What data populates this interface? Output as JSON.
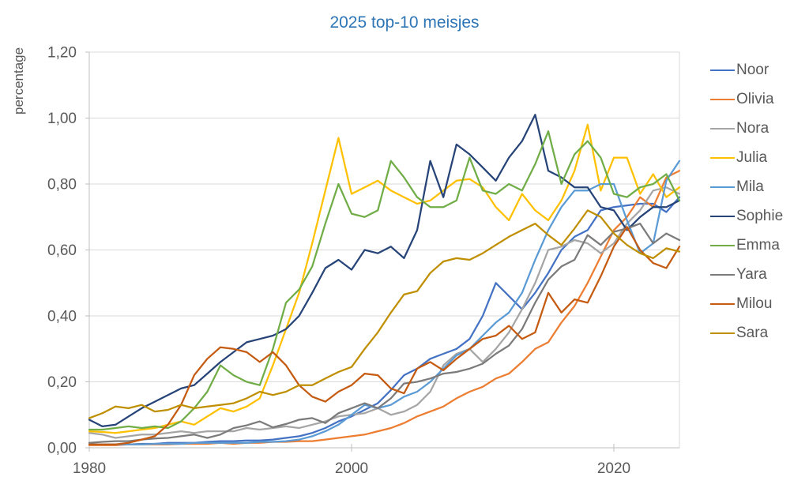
{
  "title": "2025 top-10 meisjes",
  "colors": {
    "title_text": "#2E75B6",
    "axis_text": "#595959",
    "gridline": "#D9D9D9",
    "axis_line": "#BFBFBF",
    "background": "#FFFFFF"
  },
  "y_axis": {
    "title": "percentage",
    "tick_values": [
      0,
      0.2,
      0.4,
      0.6,
      0.8,
      1.0,
      1.2
    ],
    "tick_labels": [
      "0,00",
      "0,20",
      "0,40",
      "0,60",
      "0,80",
      "1,00",
      "1,20"
    ]
  },
  "x_axis": {
    "tick_values": [
      1980,
      2000,
      2020
    ],
    "tick_labels": [
      "1980",
      "2000",
      "2020"
    ]
  },
  "chart_data": {
    "type": "line",
    "title": "2025 top-10 meisjes",
    "xlabel": "",
    "ylabel": "percentage",
    "xlim": [
      1980,
      2025
    ],
    "ylim": [
      0,
      1.2
    ],
    "grid": "horizontal",
    "legend_position": "right",
    "x": [
      1980,
      1981,
      1982,
      1983,
      1984,
      1985,
      1986,
      1987,
      1988,
      1989,
      1990,
      1991,
      1992,
      1993,
      1994,
      1995,
      1996,
      1997,
      1998,
      1999,
      2000,
      2001,
      2002,
      2003,
      2004,
      2005,
      2006,
      2007,
      2008,
      2009,
      2010,
      2011,
      2012,
      2013,
      2014,
      2015,
      2016,
      2017,
      2018,
      2019,
      2020,
      2021,
      2022,
      2023,
      2024,
      2025
    ],
    "series": [
      {
        "name": "Noor",
        "color": "#4472C4",
        "values": [
          0.01,
          0.01,
          0.01,
          0.01,
          0.012,
          0.012,
          0.015,
          0.015,
          0.015,
          0.018,
          0.02,
          0.02,
          0.022,
          0.022,
          0.025,
          0.03,
          0.035,
          0.045,
          0.06,
          0.08,
          0.095,
          0.115,
          0.135,
          0.175,
          0.22,
          0.24,
          0.27,
          0.285,
          0.3,
          0.33,
          0.4,
          0.5,
          0.46,
          0.42,
          0.47,
          0.53,
          0.6,
          0.64,
          0.66,
          0.72,
          0.73,
          0.735,
          0.74,
          0.74,
          0.715,
          0.76
        ]
      },
      {
        "name": "Olivia",
        "color": "#ED7D31",
        "values": [
          0.008,
          0.008,
          0.008,
          0.01,
          0.01,
          0.01,
          0.01,
          0.012,
          0.012,
          0.012,
          0.015,
          0.012,
          0.015,
          0.015,
          0.018,
          0.018,
          0.02,
          0.02,
          0.025,
          0.03,
          0.035,
          0.04,
          0.05,
          0.06,
          0.075,
          0.095,
          0.11,
          0.125,
          0.15,
          0.17,
          0.185,
          0.21,
          0.225,
          0.26,
          0.3,
          0.32,
          0.38,
          0.43,
          0.5,
          0.58,
          0.66,
          0.7,
          0.76,
          0.73,
          0.82,
          0.84
        ]
      },
      {
        "name": "Nora",
        "color": "#A5A5A5",
        "values": [
          0.045,
          0.04,
          0.03,
          0.035,
          0.04,
          0.04,
          0.045,
          0.05,
          0.045,
          0.05,
          0.05,
          0.05,
          0.06,
          0.055,
          0.06,
          0.065,
          0.06,
          0.07,
          0.08,
          0.095,
          0.1,
          0.105,
          0.12,
          0.1,
          0.11,
          0.13,
          0.17,
          0.25,
          0.285,
          0.3,
          0.26,
          0.3,
          0.35,
          0.42,
          0.5,
          0.6,
          0.61,
          0.63,
          0.62,
          0.59,
          0.62,
          0.68,
          0.72,
          0.78,
          0.79,
          0.77
        ]
      },
      {
        "name": "Julia",
        "color": "#FFC000",
        "values": [
          0.05,
          0.048,
          0.045,
          0.05,
          0.055,
          0.06,
          0.07,
          0.08,
          0.07,
          0.095,
          0.12,
          0.11,
          0.125,
          0.15,
          0.25,
          0.36,
          0.47,
          0.62,
          0.78,
          0.94,
          0.77,
          0.79,
          0.81,
          0.78,
          0.76,
          0.74,
          0.75,
          0.78,
          0.81,
          0.815,
          0.79,
          0.73,
          0.69,
          0.77,
          0.72,
          0.69,
          0.75,
          0.84,
          0.98,
          0.78,
          0.88,
          0.88,
          0.77,
          0.83,
          0.76,
          0.79
        ]
      },
      {
        "name": "Mila",
        "color": "#5B9BD5",
        "values": [
          0.01,
          0.01,
          0.01,
          0.01,
          0.01,
          0.012,
          0.012,
          0.012,
          0.015,
          0.015,
          0.015,
          0.015,
          0.015,
          0.018,
          0.018,
          0.02,
          0.025,
          0.035,
          0.05,
          0.07,
          0.1,
          0.13,
          0.12,
          0.13,
          0.155,
          0.17,
          0.2,
          0.24,
          0.28,
          0.3,
          0.34,
          0.38,
          0.41,
          0.47,
          0.57,
          0.66,
          0.73,
          0.78,
          0.78,
          0.8,
          0.8,
          0.69,
          0.59,
          0.62,
          0.81,
          0.87
        ]
      },
      {
        "name": "Sophie",
        "color": "#264478",
        "values": [
          0.085,
          0.065,
          0.07,
          0.095,
          0.12,
          0.14,
          0.16,
          0.18,
          0.19,
          0.225,
          0.26,
          0.29,
          0.32,
          0.33,
          0.34,
          0.36,
          0.4,
          0.47,
          0.545,
          0.57,
          0.54,
          0.6,
          0.59,
          0.61,
          0.575,
          0.66,
          0.87,
          0.76,
          0.92,
          0.89,
          0.85,
          0.81,
          0.88,
          0.93,
          1.01,
          0.84,
          0.82,
          0.79,
          0.79,
          0.73,
          0.72,
          0.66,
          0.7,
          0.73,
          0.73,
          0.75
        ]
      },
      {
        "name": "Emma",
        "color": "#70AD47",
        "values": [
          0.055,
          0.055,
          0.06,
          0.065,
          0.06,
          0.065,
          0.06,
          0.08,
          0.12,
          0.17,
          0.25,
          0.22,
          0.2,
          0.19,
          0.3,
          0.44,
          0.48,
          0.55,
          0.68,
          0.8,
          0.71,
          0.7,
          0.72,
          0.87,
          0.82,
          0.76,
          0.73,
          0.73,
          0.75,
          0.88,
          0.78,
          0.77,
          0.8,
          0.78,
          0.86,
          0.96,
          0.8,
          0.89,
          0.93,
          0.88,
          0.77,
          0.76,
          0.79,
          0.8,
          0.83,
          0.75
        ]
      },
      {
        "name": "Yara",
        "color": "#7B7B7B",
        "values": [
          0.015,
          0.018,
          0.02,
          0.02,
          0.025,
          0.028,
          0.03,
          0.035,
          0.04,
          0.03,
          0.04,
          0.06,
          0.068,
          0.08,
          0.062,
          0.072,
          0.085,
          0.09,
          0.075,
          0.105,
          0.12,
          0.135,
          0.12,
          0.15,
          0.195,
          0.2,
          0.21,
          0.225,
          0.23,
          0.24,
          0.255,
          0.285,
          0.31,
          0.36,
          0.44,
          0.51,
          0.55,
          0.57,
          0.645,
          0.615,
          0.655,
          0.665,
          0.68,
          0.62,
          0.65,
          0.63
        ]
      },
      {
        "name": "Milou",
        "color": "#C55A11",
        "values": [
          0.01,
          0.01,
          0.01,
          0.015,
          0.025,
          0.035,
          0.07,
          0.13,
          0.22,
          0.27,
          0.305,
          0.3,
          0.29,
          0.26,
          0.29,
          0.25,
          0.19,
          0.155,
          0.14,
          0.17,
          0.19,
          0.225,
          0.22,
          0.18,
          0.165,
          0.24,
          0.26,
          0.235,
          0.27,
          0.3,
          0.33,
          0.34,
          0.37,
          0.33,
          0.35,
          0.47,
          0.41,
          0.45,
          0.44,
          0.52,
          0.61,
          0.67,
          0.6,
          0.56,
          0.545,
          0.61
        ]
      },
      {
        "name": "Sara",
        "color": "#BF8F00",
        "values": [
          0.09,
          0.105,
          0.125,
          0.12,
          0.13,
          0.11,
          0.115,
          0.13,
          0.12,
          0.125,
          0.13,
          0.135,
          0.15,
          0.17,
          0.16,
          0.17,
          0.19,
          0.19,
          0.21,
          0.23,
          0.245,
          0.3,
          0.35,
          0.41,
          0.465,
          0.475,
          0.53,
          0.565,
          0.575,
          0.57,
          0.59,
          0.615,
          0.64,
          0.66,
          0.68,
          0.645,
          0.615,
          0.665,
          0.72,
          0.7,
          0.65,
          0.615,
          0.59,
          0.575,
          0.605,
          0.595
        ]
      }
    ]
  }
}
